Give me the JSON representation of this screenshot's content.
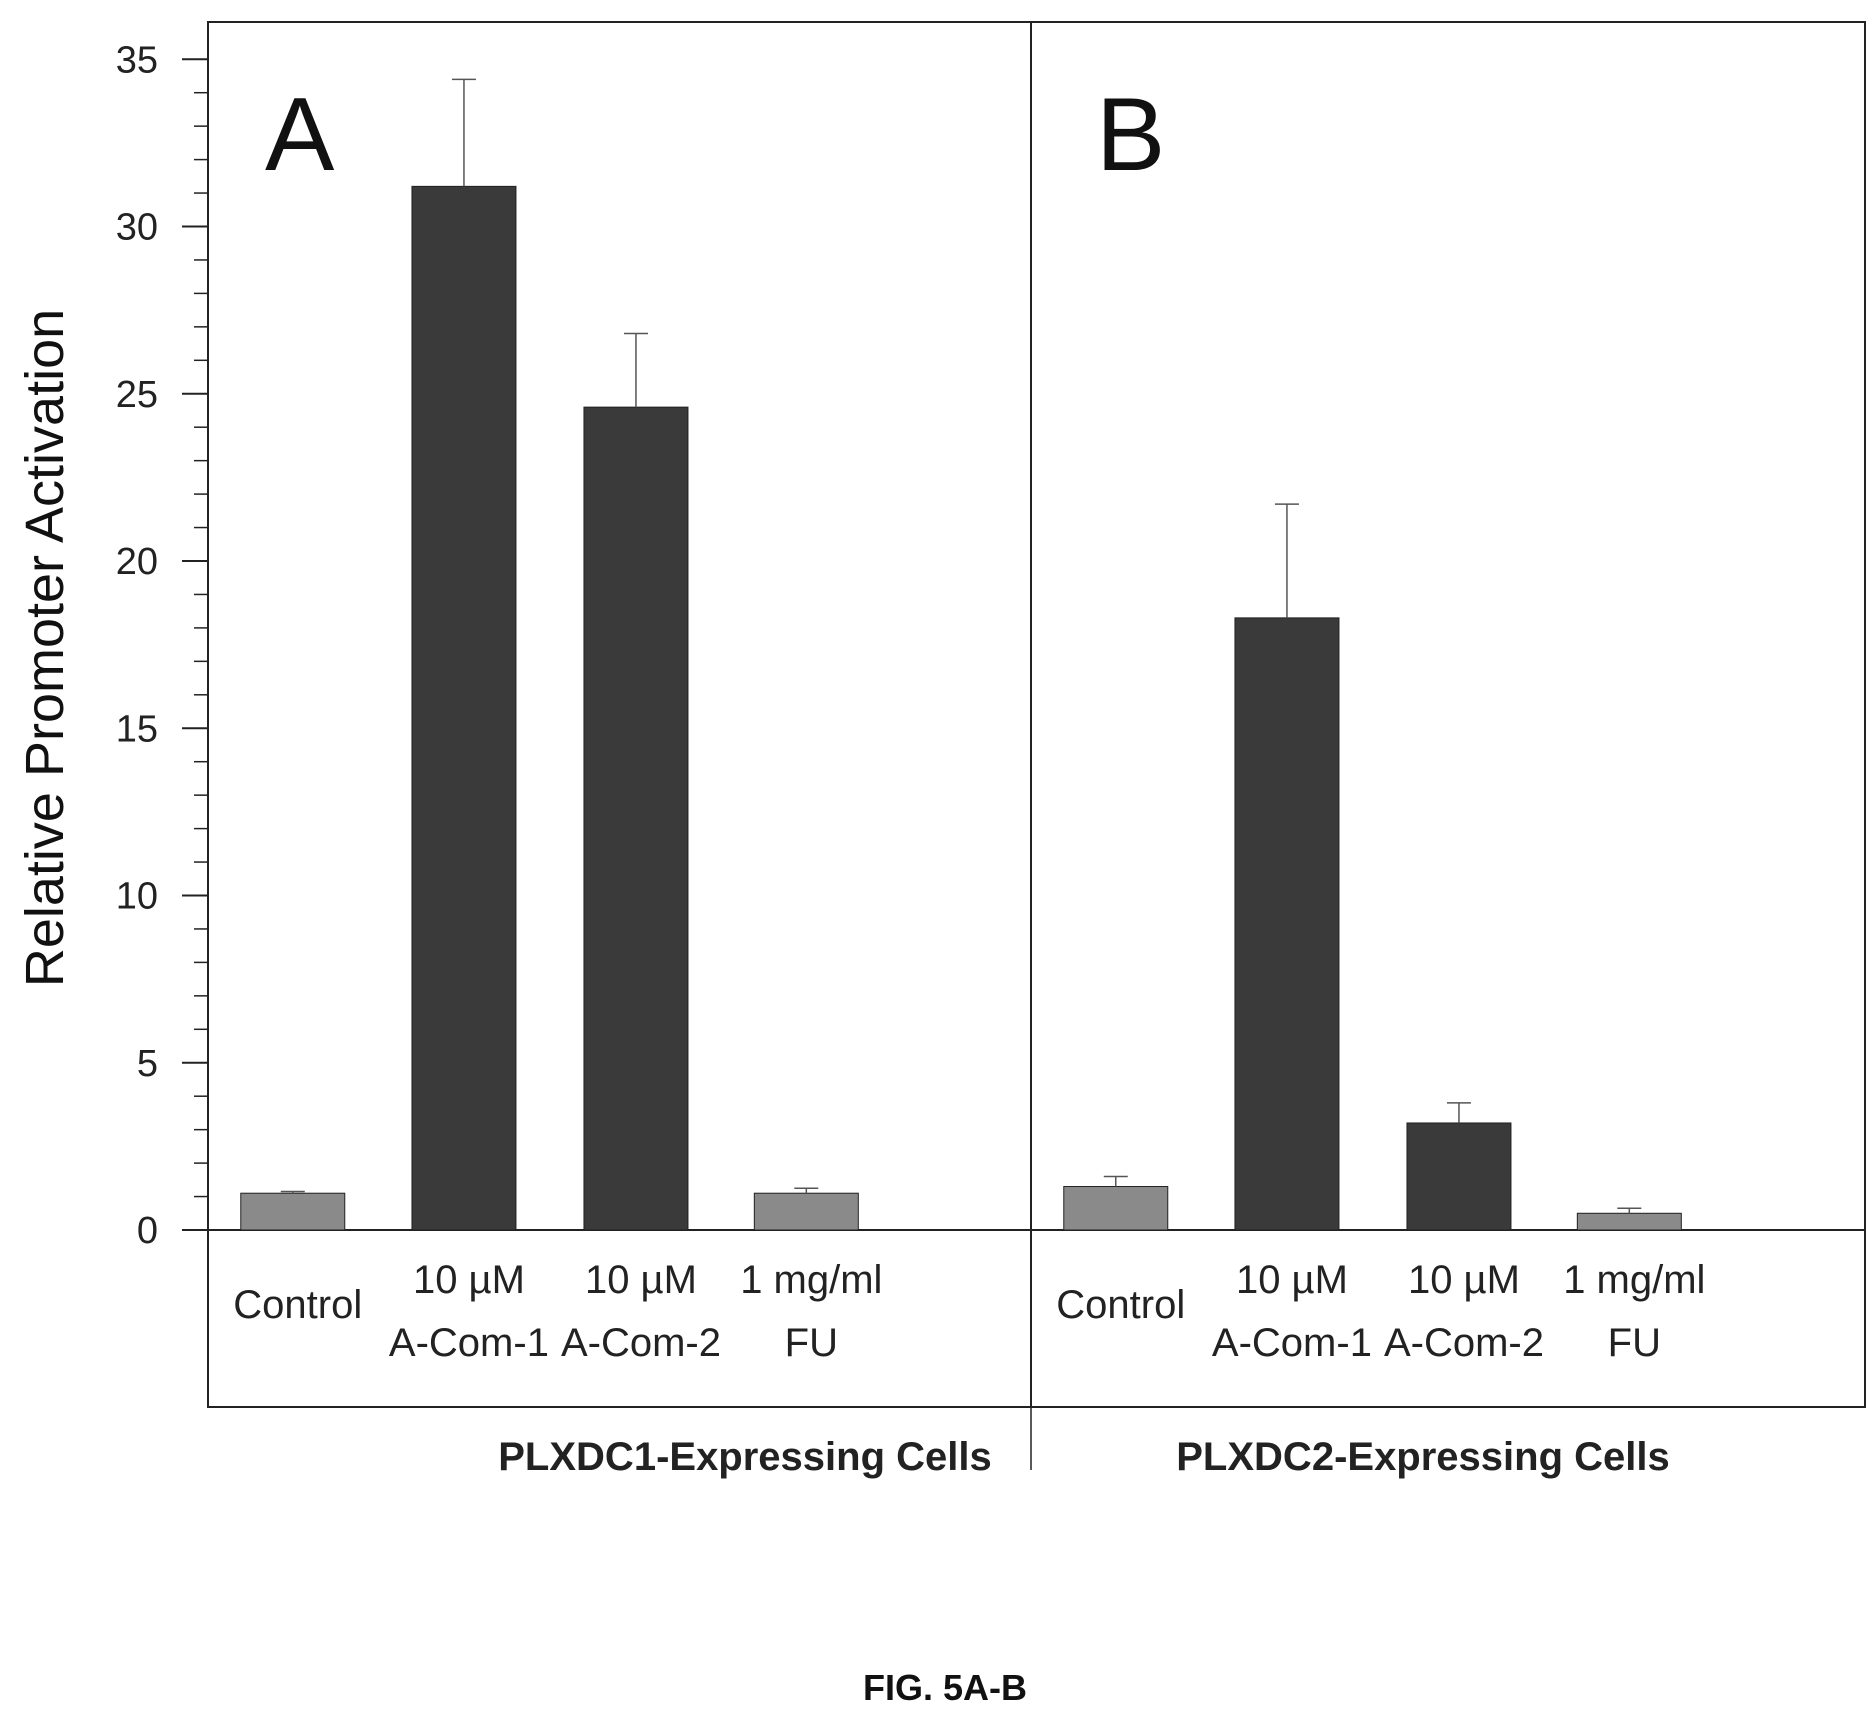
{
  "chart_data": {
    "type": "bar",
    "ylabel": "Relative Promoter Activation",
    "ylim": [
      0,
      36
    ],
    "yticks": [
      0,
      5,
      10,
      15,
      20,
      25,
      30,
      35
    ],
    "colors": {
      "light": "#8a8a8a",
      "dark": "#3a3a3a"
    },
    "panels": [
      {
        "label": "A",
        "group": "PLXDC1-Expressing Cells",
        "categories": [
          [
            "Control"
          ],
          [
            "10 µM",
            "A-Com-1"
          ],
          [
            "10 µM",
            "A-Com-2"
          ],
          [
            "1 mg/ml",
            "FU"
          ]
        ],
        "values": [
          1.1,
          31.2,
          24.6,
          1.1
        ],
        "errors": [
          0.05,
          3.2,
          2.2,
          0.15
        ],
        "shades": [
          "light",
          "dark",
          "dark",
          "light"
        ]
      },
      {
        "label": "B",
        "group": "PLXDC2-Expressing Cells",
        "categories": [
          [
            "Control"
          ],
          [
            "10 µM",
            "A-Com-1"
          ],
          [
            "10 µM",
            "A-Com-2"
          ],
          [
            "1 mg/ml",
            "FU"
          ]
        ],
        "values": [
          1.3,
          18.3,
          3.2,
          0.5
        ],
        "errors": [
          0.3,
          3.4,
          0.6,
          0.15
        ],
        "shades": [
          "light",
          "dark",
          "dark",
          "light"
        ]
      }
    ]
  },
  "caption": "FIG. 5A-B"
}
